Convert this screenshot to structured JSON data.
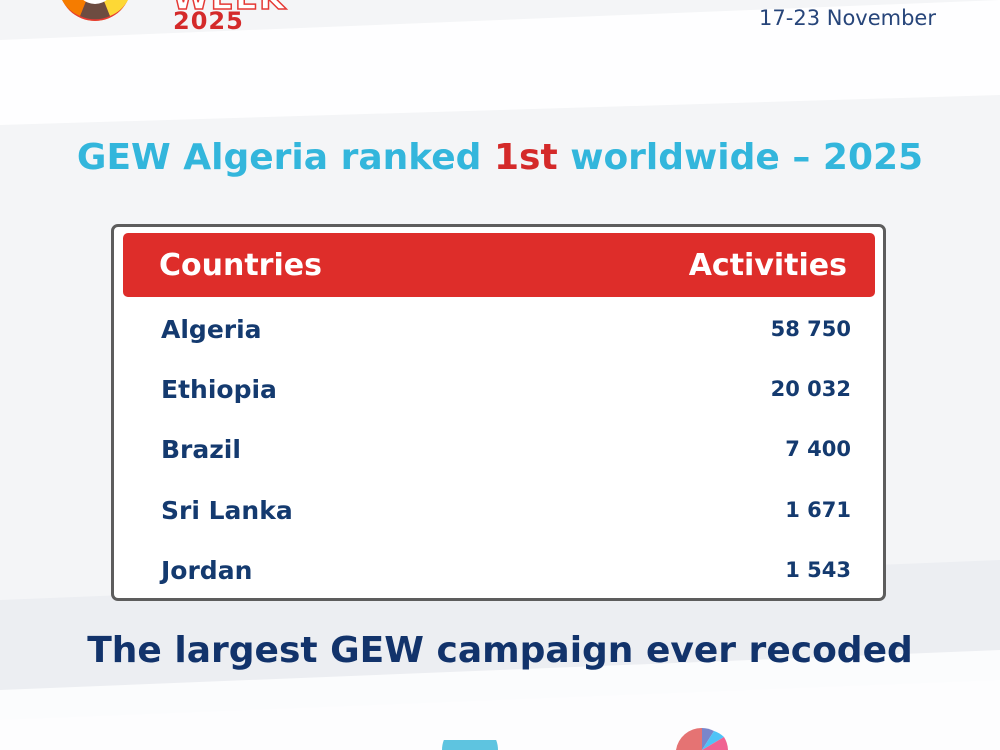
{
  "header": {
    "logo_word": "WEEK",
    "logo_year": "2025",
    "dates": "17-23 November"
  },
  "headline": {
    "before": "GEW Algeria ranked ",
    "accent": "1st",
    "after": " worldwide – 2025"
  },
  "table": {
    "columns": [
      "Countries",
      "Activities"
    ],
    "rows": [
      {
        "country": "Algeria",
        "activities": "58 750"
      },
      {
        "country": "Ethiopia",
        "activities": "20 032"
      },
      {
        "country": "Brazil",
        "activities": "7 400"
      },
      {
        "country": "Sri Lanka",
        "activities": "1 671"
      },
      {
        "country": "Jordan",
        "activities": "1 543"
      }
    ]
  },
  "tagline": "The largest GEW campaign ever recoded",
  "colors": {
    "headline_blue": "#33b6dc",
    "accent_red": "#d42a2a",
    "table_header_red": "#de2d2a",
    "navy_text": "#143a6f"
  }
}
